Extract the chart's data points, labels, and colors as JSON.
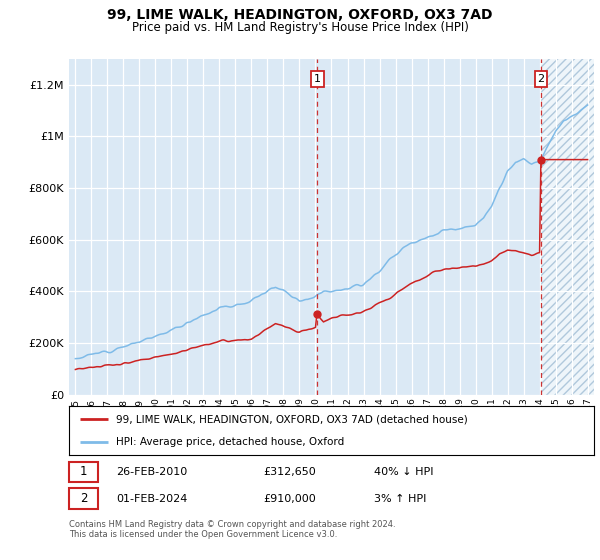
{
  "title": "99, LIME WALK, HEADINGTON, OXFORD, OX3 7AD",
  "subtitle": "Price paid vs. HM Land Registry's House Price Index (HPI)",
  "ylim": [
    0,
    1300000
  ],
  "yticks": [
    0,
    200000,
    400000,
    600000,
    800000,
    1000000,
    1200000
  ],
  "hpi_color": "#7fbbe8",
  "price_color": "#cc2222",
  "marker1_x": 2010.12,
  "marker1_price": 312650,
  "marker2_x": 2024.08,
  "marker2_price": 910000,
  "future_start": 2024.08,
  "xmin": 1994.6,
  "xmax": 2027.4,
  "legend_entry1": "99, LIME WALK, HEADINGTON, OXFORD, OX3 7AD (detached house)",
  "legend_entry2": "HPI: Average price, detached house, Oxford",
  "row1_label": "1",
  "row1_date": "26-FEB-2010",
  "row1_price": "£312,650",
  "row1_pct": "40% ↓ HPI",
  "row2_label": "2",
  "row2_date": "01-FEB-2024",
  "row2_price": "£910,000",
  "row2_pct": "3% ↑ HPI",
  "copyright": "Contains HM Land Registry data © Crown copyright and database right 2024.\nThis data is licensed under the Open Government Licence v3.0.",
  "bg_color": "#dbe9f5",
  "hatch_bg": "#c8dced"
}
